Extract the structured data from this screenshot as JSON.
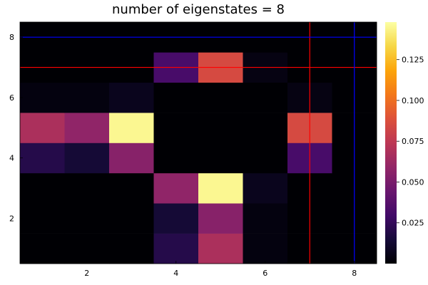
{
  "chart_data": {
    "type": "heatmap",
    "title": "number of eigenstates = 8",
    "x_range": [
      0.5,
      8.5
    ],
    "y_range": [
      0.5,
      8.5
    ],
    "x_ticks": [
      2,
      4,
      6,
      8
    ],
    "y_ticks": [
      2,
      4,
      6,
      8
    ],
    "grid": false,
    "colormap": "inferno",
    "colorbar": {
      "range": [
        0.0,
        0.148
      ],
      "ticks": [
        0.025,
        0.05,
        0.075,
        0.1,
        0.125
      ],
      "tick_labels": [
        "0.025",
        "0.050",
        "0.075",
        "0.100",
        "0.125"
      ]
    },
    "cells": [
      {
        "x": 1,
        "y": 1,
        "v": 0.0
      },
      {
        "x": 2,
        "y": 1,
        "v": 0.0
      },
      {
        "x": 3,
        "y": 1,
        "v": 0.0
      },
      {
        "x": 4,
        "y": 1,
        "v": 0.02
      },
      {
        "x": 5,
        "y": 1,
        "v": 0.068
      },
      {
        "x": 6,
        "y": 1,
        "v": 0.003
      },
      {
        "x": 7,
        "y": 1,
        "v": 0.0
      },
      {
        "x": 8,
        "y": 1,
        "v": 0.0
      },
      {
        "x": 1,
        "y": 2,
        "v": 0.0
      },
      {
        "x": 2,
        "y": 2,
        "v": 0.0
      },
      {
        "x": 3,
        "y": 2,
        "v": 0.0
      },
      {
        "x": 4,
        "y": 2,
        "v": 0.014
      },
      {
        "x": 5,
        "y": 2,
        "v": 0.055
      },
      {
        "x": 6,
        "y": 2,
        "v": 0.003
      },
      {
        "x": 7,
        "y": 2,
        "v": 0.0
      },
      {
        "x": 8,
        "y": 2,
        "v": 0.0
      },
      {
        "x": 1,
        "y": 3,
        "v": 0.0
      },
      {
        "x": 2,
        "y": 3,
        "v": 0.0
      },
      {
        "x": 3,
        "y": 3,
        "v": 0.0
      },
      {
        "x": 4,
        "y": 3,
        "v": 0.058
      },
      {
        "x": 5,
        "y": 3,
        "v": 0.145
      },
      {
        "x": 6,
        "y": 3,
        "v": 0.007
      },
      {
        "x": 7,
        "y": 3,
        "v": 0.0
      },
      {
        "x": 8,
        "y": 3,
        "v": 0.0
      },
      {
        "x": 1,
        "y": 4,
        "v": 0.02
      },
      {
        "x": 2,
        "y": 4,
        "v": 0.014
      },
      {
        "x": 3,
        "y": 4,
        "v": 0.055
      },
      {
        "x": 4,
        "y": 4,
        "v": 0.0
      },
      {
        "x": 5,
        "y": 4,
        "v": 0.0
      },
      {
        "x": 6,
        "y": 4,
        "v": 0.0
      },
      {
        "x": 7,
        "y": 4,
        "v": 0.032
      },
      {
        "x": 8,
        "y": 4,
        "v": 0.0
      },
      {
        "x": 1,
        "y": 5,
        "v": 0.068
      },
      {
        "x": 2,
        "y": 5,
        "v": 0.058
      },
      {
        "x": 3,
        "y": 5,
        "v": 0.145
      },
      {
        "x": 4,
        "y": 5,
        "v": 0.0
      },
      {
        "x": 5,
        "y": 5,
        "v": 0.0
      },
      {
        "x": 6,
        "y": 5,
        "v": 0.0
      },
      {
        "x": 7,
        "y": 5,
        "v": 0.085
      },
      {
        "x": 8,
        "y": 5,
        "v": 0.0
      },
      {
        "x": 1,
        "y": 6,
        "v": 0.003
      },
      {
        "x": 2,
        "y": 6,
        "v": 0.003
      },
      {
        "x": 3,
        "y": 6,
        "v": 0.007
      },
      {
        "x": 4,
        "y": 6,
        "v": 0.0
      },
      {
        "x": 5,
        "y": 6,
        "v": 0.0
      },
      {
        "x": 6,
        "y": 6,
        "v": 0.0
      },
      {
        "x": 7,
        "y": 6,
        "v": 0.004
      },
      {
        "x": 8,
        "y": 6,
        "v": 0.0
      },
      {
        "x": 1,
        "y": 7,
        "v": 0.0
      },
      {
        "x": 2,
        "y": 7,
        "v": 0.0
      },
      {
        "x": 3,
        "y": 7,
        "v": 0.0
      },
      {
        "x": 4,
        "y": 7,
        "v": 0.032
      },
      {
        "x": 5,
        "y": 7,
        "v": 0.085
      },
      {
        "x": 6,
        "y": 7,
        "v": 0.004
      },
      {
        "x": 7,
        "y": 7,
        "v": 0.0
      },
      {
        "x": 8,
        "y": 7,
        "v": 0.0
      },
      {
        "x": 1,
        "y": 8,
        "v": 0.0
      },
      {
        "x": 2,
        "y": 8,
        "v": 0.0
      },
      {
        "x": 3,
        "y": 8,
        "v": 0.0
      },
      {
        "x": 4,
        "y": 8,
        "v": 0.0
      },
      {
        "x": 5,
        "y": 8,
        "v": 0.0
      },
      {
        "x": 6,
        "y": 8,
        "v": 0.0
      },
      {
        "x": 7,
        "y": 8,
        "v": 0.0
      },
      {
        "x": 8,
        "y": 8,
        "v": 0.0
      }
    ],
    "reference_lines": [
      {
        "orientation": "vertical",
        "x": 7,
        "color": "#ff0000"
      },
      {
        "orientation": "horizontal",
        "y": 7,
        "color": "#ff0000"
      },
      {
        "orientation": "vertical",
        "x": 8,
        "color": "#0000ff"
      },
      {
        "orientation": "horizontal",
        "y": 8,
        "color": "#0000ff"
      }
    ]
  }
}
